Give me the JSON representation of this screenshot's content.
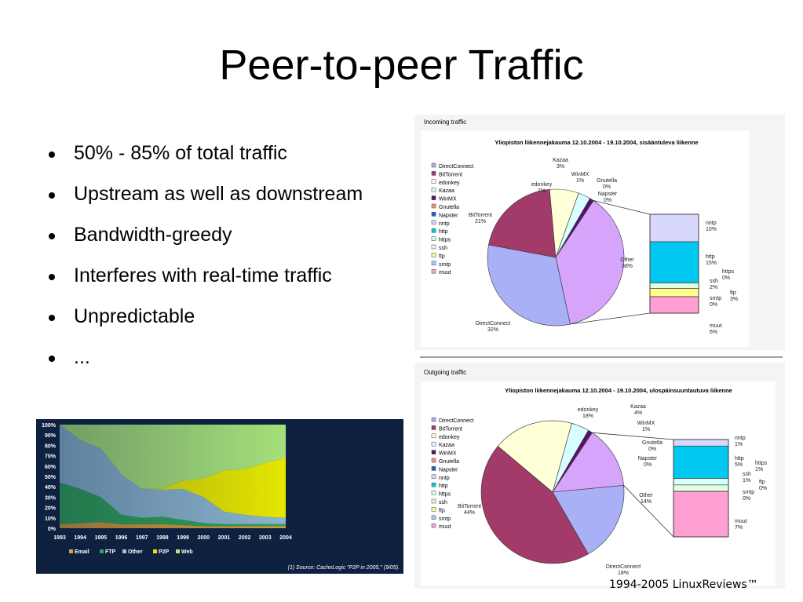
{
  "slide": {
    "title": "Peer-to-peer Traffic",
    "bullets": [
      "50% - 85% of total traffic",
      "Upstream as well as downstream",
      "Bandwidth-greedy",
      "Interferes with real-time traffic",
      "Unpredictable",
      "..."
    ],
    "footer": "1994-2005 LinuxReviews™"
  },
  "colors": {
    "Email": "#e0a040",
    "FTP": "#2eaa55",
    "Other": "#9cc4e0",
    "P2P": "#e6e600",
    "Web": "#b7e684",
    "DirectConnect": "#aab0f6",
    "BitTorrent": "#a23a6a",
    "edonkey": "#ffffd8",
    "Kazaa": "#d8ffff",
    "WinMX": "#5a0f6e",
    "Gnutella": "#ff8c8c",
    "Napster": "#1e64c8",
    "nntp": "#d8d8ff",
    "http": "#00c8f0",
    "https": "#d8fff8",
    "ssh": "#e0ffe0",
    "ftp": "#ffff90",
    "smtp": "#a8c8ff",
    "muut": "#ff9fd2",
    "OtherSlice": "#d6a4fb"
  },
  "chart_data": [
    {
      "type": "area",
      "stacked": true,
      "x": [
        "1993",
        "1994",
        "1995",
        "1996",
        "1997",
        "1998",
        "1999",
        "2000",
        "2001",
        "2002",
        "2003",
        "2004"
      ],
      "series": [
        {
          "name": "Email",
          "values": [
            4,
            5,
            6,
            4,
            4,
            4,
            3,
            2,
            2,
            2,
            2,
            2
          ]
        },
        {
          "name": "FTP",
          "values": [
            40,
            33,
            24,
            9,
            6,
            7,
            5,
            3,
            2,
            2,
            2,
            2
          ]
        },
        {
          "name": "Other",
          "values": [
            56,
            47,
            47,
            39,
            28,
            26,
            30,
            25,
            12,
            9,
            7,
            6
          ]
        },
        {
          "name": "P2P",
          "values": [
            0,
            0,
            0,
            0,
            0,
            1,
            8,
            18,
            40,
            44,
            52,
            58
          ]
        },
        {
          "name": "Web",
          "values": [
            0,
            15,
            23,
            48,
            62,
            62,
            54,
            52,
            44,
            43,
            37,
            32
          ]
        }
      ],
      "ylim": [
        0,
        100
      ],
      "yticks": [
        "100%",
        "90%",
        "80%",
        "70%",
        "60%",
        "50%",
        "40%",
        "30%",
        "20%",
        "10%",
        "0%"
      ],
      "source": "(1) Source: CacheLogic \"P2P in 2005,\" (9/05)."
    },
    {
      "type": "pie",
      "caption": "Incoming traffic",
      "title": "Yliopiston liikennejakauma 12.10.2004 - 19.10.2004, sisääntuleva liikenne",
      "legend": [
        "DirectConnect",
        "BitTorrent",
        "edonkey",
        "Kazaa",
        "WinMX",
        "Gnutella",
        "Napster",
        "nntp",
        "http",
        "https",
        "ssh",
        "ftp",
        "smtp",
        "muut"
      ],
      "slices": [
        {
          "label": "DirectConnect",
          "value": 32,
          "text": "32%"
        },
        {
          "label": "BitTorrent",
          "value": 21,
          "text": "21%"
        },
        {
          "label": "edonkey",
          "value": 7,
          "text": "7%"
        },
        {
          "label": "Kazaa",
          "value": 3,
          "text": "3%"
        },
        {
          "label": "WinMX",
          "value": 1,
          "text": "1%"
        },
        {
          "label": "Gnutella",
          "value": 0,
          "text": "0%"
        },
        {
          "label": "Napster",
          "value": 0,
          "text": "0%"
        },
        {
          "label": "Other",
          "value": 38,
          "text": "38%"
        }
      ],
      "breakdown": [
        {
          "label": "nntp",
          "value": 10,
          "text": "10%"
        },
        {
          "label": "http",
          "value": 15,
          "text": "15%"
        },
        {
          "label": "https",
          "value": 0,
          "text": "0%"
        },
        {
          "label": "ssh",
          "value": 2,
          "text": "2%"
        },
        {
          "label": "ftp",
          "value": 3,
          "text": "3%"
        },
        {
          "label": "smtp",
          "value": 0,
          "text": "0%"
        },
        {
          "label": "muut",
          "value": 6,
          "text": "6%"
        }
      ]
    },
    {
      "type": "pie",
      "caption": "Outgoing traffic",
      "title": "Yliopiston liikennejakauma 12.10.2004 - 19.10.2004, ulospäinsuuntautuva liikenne",
      "legend": [
        "DirectConnect",
        "BitTorrent",
        "edonkey",
        "Kazaa",
        "WinMX",
        "Gnutella",
        "Napster",
        "nntp",
        "http",
        "https",
        "ssh",
        "ftp",
        "smtp",
        "muut"
      ],
      "slices": [
        {
          "label": "DirectConnect",
          "value": 18,
          "text": "18%"
        },
        {
          "label": "BitTorrent",
          "value": 44,
          "text": "44%"
        },
        {
          "label": "edonkey",
          "value": 18,
          "text": "18%"
        },
        {
          "label": "Kazaa",
          "value": 4,
          "text": "4%"
        },
        {
          "label": "WinMX",
          "value": 1,
          "text": "1%"
        },
        {
          "label": "Gnutella",
          "value": 0,
          "text": "0%"
        },
        {
          "label": "Napster",
          "value": 0,
          "text": "0%"
        },
        {
          "label": "Other",
          "value": 14,
          "text": "14%"
        }
      ],
      "breakdown": [
        {
          "label": "nntp",
          "value": 1,
          "text": "1%"
        },
        {
          "label": "http",
          "value": 5,
          "text": "5%"
        },
        {
          "label": "https",
          "value": 1,
          "text": "1%"
        },
        {
          "label": "ssh",
          "value": 1,
          "text": "1%"
        },
        {
          "label": "ftp",
          "value": 0,
          "text": "0%"
        },
        {
          "label": "smtp",
          "value": 0,
          "text": "0%"
        },
        {
          "label": "muut",
          "value": 7,
          "text": "7%"
        }
      ]
    }
  ]
}
